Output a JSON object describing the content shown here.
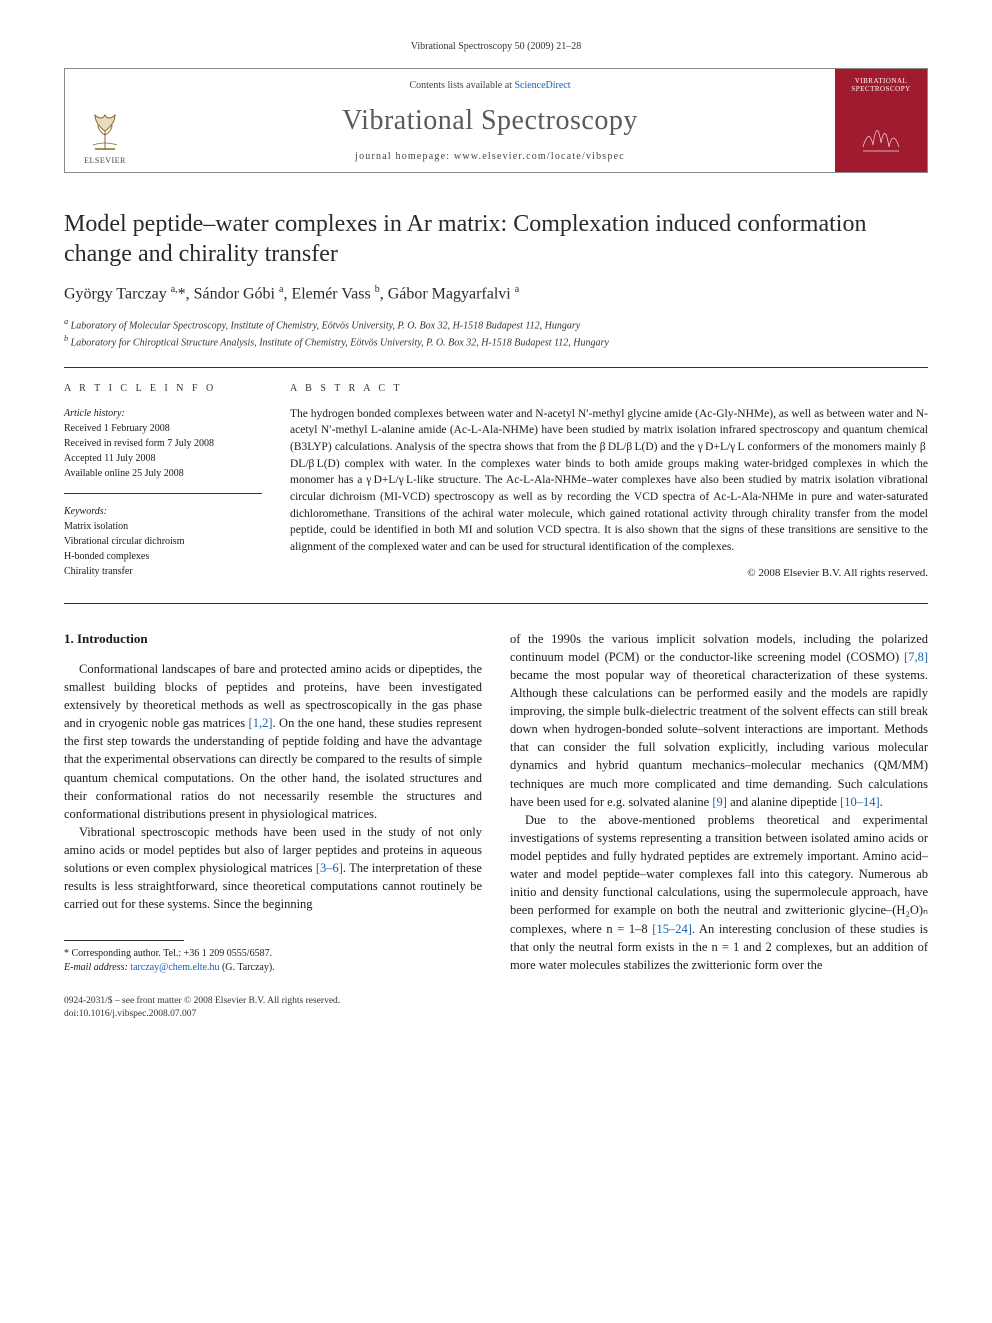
{
  "journal_ref": "Vibrational Spectroscopy 50 (2009) 21–28",
  "masthead": {
    "contents_prefix": "Contents lists available at ",
    "contents_link": "ScienceDirect",
    "journal_title": "Vibrational Spectroscopy",
    "homepage_prefix": "journal homepage: ",
    "homepage_url": "www.elsevier.com/locate/vibspec",
    "publisher_label": "ELSEVIER",
    "cover_title": "VIBRATIONAL SPECTROSCOPY",
    "styling": {
      "cover_bg": "#a01b2e",
      "link_color": "#1560b3",
      "border_color": "#888888",
      "journal_title_color": "#5a5a5a",
      "journal_title_fontsize_pt": 21
    }
  },
  "article": {
    "title": "Model peptide–water complexes in Ar matrix: Complexation induced conformation change and chirality transfer",
    "title_fontsize_pt": 18,
    "authors_html": "György Tarczay <sup>a,</sup>*, Sándor Góbi <sup>a</sup>, Elemér Vass <sup>b</sup>, Gábor Magyarfalvi <sup>a</sup>",
    "affiliations": [
      "a Laboratory of Molecular Spectroscopy, Institute of Chemistry, Eötvös University, P. O. Box 32, H-1518 Budapest 112, Hungary",
      "b Laboratory for Chiroptical Structure Analysis, Institute of Chemistry, Eötvös University, P. O. Box 32, H-1518 Budapest 112, Hungary"
    ]
  },
  "article_info": {
    "heading": "A R T I C L E   I N F O",
    "history_label": "Article history:",
    "history": [
      "Received 1 February 2008",
      "Received in revised form 7 July 2008",
      "Accepted 11 July 2008",
      "Available online 25 July 2008"
    ],
    "keywords_label": "Keywords:",
    "keywords": [
      "Matrix isolation",
      "Vibrational circular dichroism",
      "H-bonded complexes",
      "Chirality transfer"
    ]
  },
  "abstract": {
    "heading": "A B S T R A C T",
    "text": "The hydrogen bonded complexes between water and N-acetyl N′-methyl glycine amide (Ac-Gly-NHMe), as well as between water and N-acetyl N′-methyl L-alanine amide (Ac-L-Ala-NHMe) have been studied by matrix isolation infrared spectroscopy and quantum chemical (B3LYP) calculations. Analysis of the spectra shows that from the β DL/β L(D) and the γ D+L/γ L conformers of the monomers mainly β DL/β L(D) complex with water. In the complexes water binds to both amide groups making water-bridged complexes in which the monomer has a γ D+L/γ L-like structure. The Ac-L-Ala-NHMe–water complexes have also been studied by matrix isolation vibrational circular dichroism (MI-VCD) spectroscopy as well as by recording the VCD spectra of Ac-L-Ala-NHMe in pure and water-saturated dichloromethane. Transitions of the achiral water molecule, which gained rotational activity through chirality transfer from the model peptide, could be identified in both MI and solution VCD spectra. It is also shown that the signs of these transitions are sensitive to the alignment of the complexed water and can be used for structural identification of the complexes.",
    "copyright": "© 2008 Elsevier B.V. All rights reserved."
  },
  "body": {
    "section_heading": "1. Introduction",
    "left_paras": [
      "Conformational landscapes of bare and protected amino acids or dipeptides, the smallest building blocks of peptides and proteins, have been investigated extensively by theoretical methods as well as spectroscopically in the gas phase and in cryogenic noble gas matrices [1,2]. On the one hand, these studies represent the first step towards the understanding of peptide folding and have the advantage that the experimental observations can directly be compared to the results of simple quantum chemical computations. On the other hand, the isolated structures and their conformational ratios do not necessarily resemble the structures and conformational distributions present in physiological matrices.",
      "Vibrational spectroscopic methods have been used in the study of not only amino acids or model peptides but also of larger peptides and proteins in aqueous solutions or even complex physiological matrices [3–6]. The interpretation of these results is less straightforward, since theoretical computations cannot routinely be carried out for these systems. Since the beginning"
    ],
    "right_paras": [
      "of the 1990s the various implicit solvation models, including the polarized continuum model (PCM) or the conductor-like screening model (COSMO) [7,8] became the most popular way of theoretical characterization of these systems. Although these calculations can be performed easily and the models are rapidly improving, the simple bulk-dielectric treatment of the solvent effects can still break down when hydrogen-bonded solute–solvent interactions are important. Methods that can consider the full solvation explicitly, including various molecular dynamics and hybrid quantum mechanics–molecular mechanics (QM/MM) techniques are much more complicated and time demanding. Such calculations have been used for e.g. solvated alanine [9] and alanine dipeptide [10–14].",
      "Due to the above-mentioned problems theoretical and experimental investigations of systems representing a transition between isolated amino acids or model peptides and fully hydrated peptides are extremely important. Amino acid–water and model peptide–water complexes fall into this category. Numerous ab initio and density functional calculations, using the supermolecule approach, have been performed for example on both the neutral and zwitterionic glycine–(H₂O)ₙ complexes, where n = 1–8 [15–24]. An interesting conclusion of these studies is that only the neutral form exists in the n = 1 and 2 complexes, but an addition of more water molecules stabilizes the zwitterionic form over the"
    ]
  },
  "footnotes": {
    "corr_label": "* Corresponding author. Tel.: +36 1 209 0555/6587.",
    "email_label": "E-mail address: ",
    "email": "tarczay@chem.elte.hu",
    "email_suffix": " (G. Tarczay)."
  },
  "footer": {
    "line1": "0924-2031/$ – see front matter © 2008 Elsevier B.V. All rights reserved.",
    "line2": "doi:10.1016/j.vibspec.2008.07.007"
  },
  "colors": {
    "text": "#1a1a1a",
    "link": "#1560b3",
    "rule": "#333333",
    "bg": "#ffffff"
  }
}
